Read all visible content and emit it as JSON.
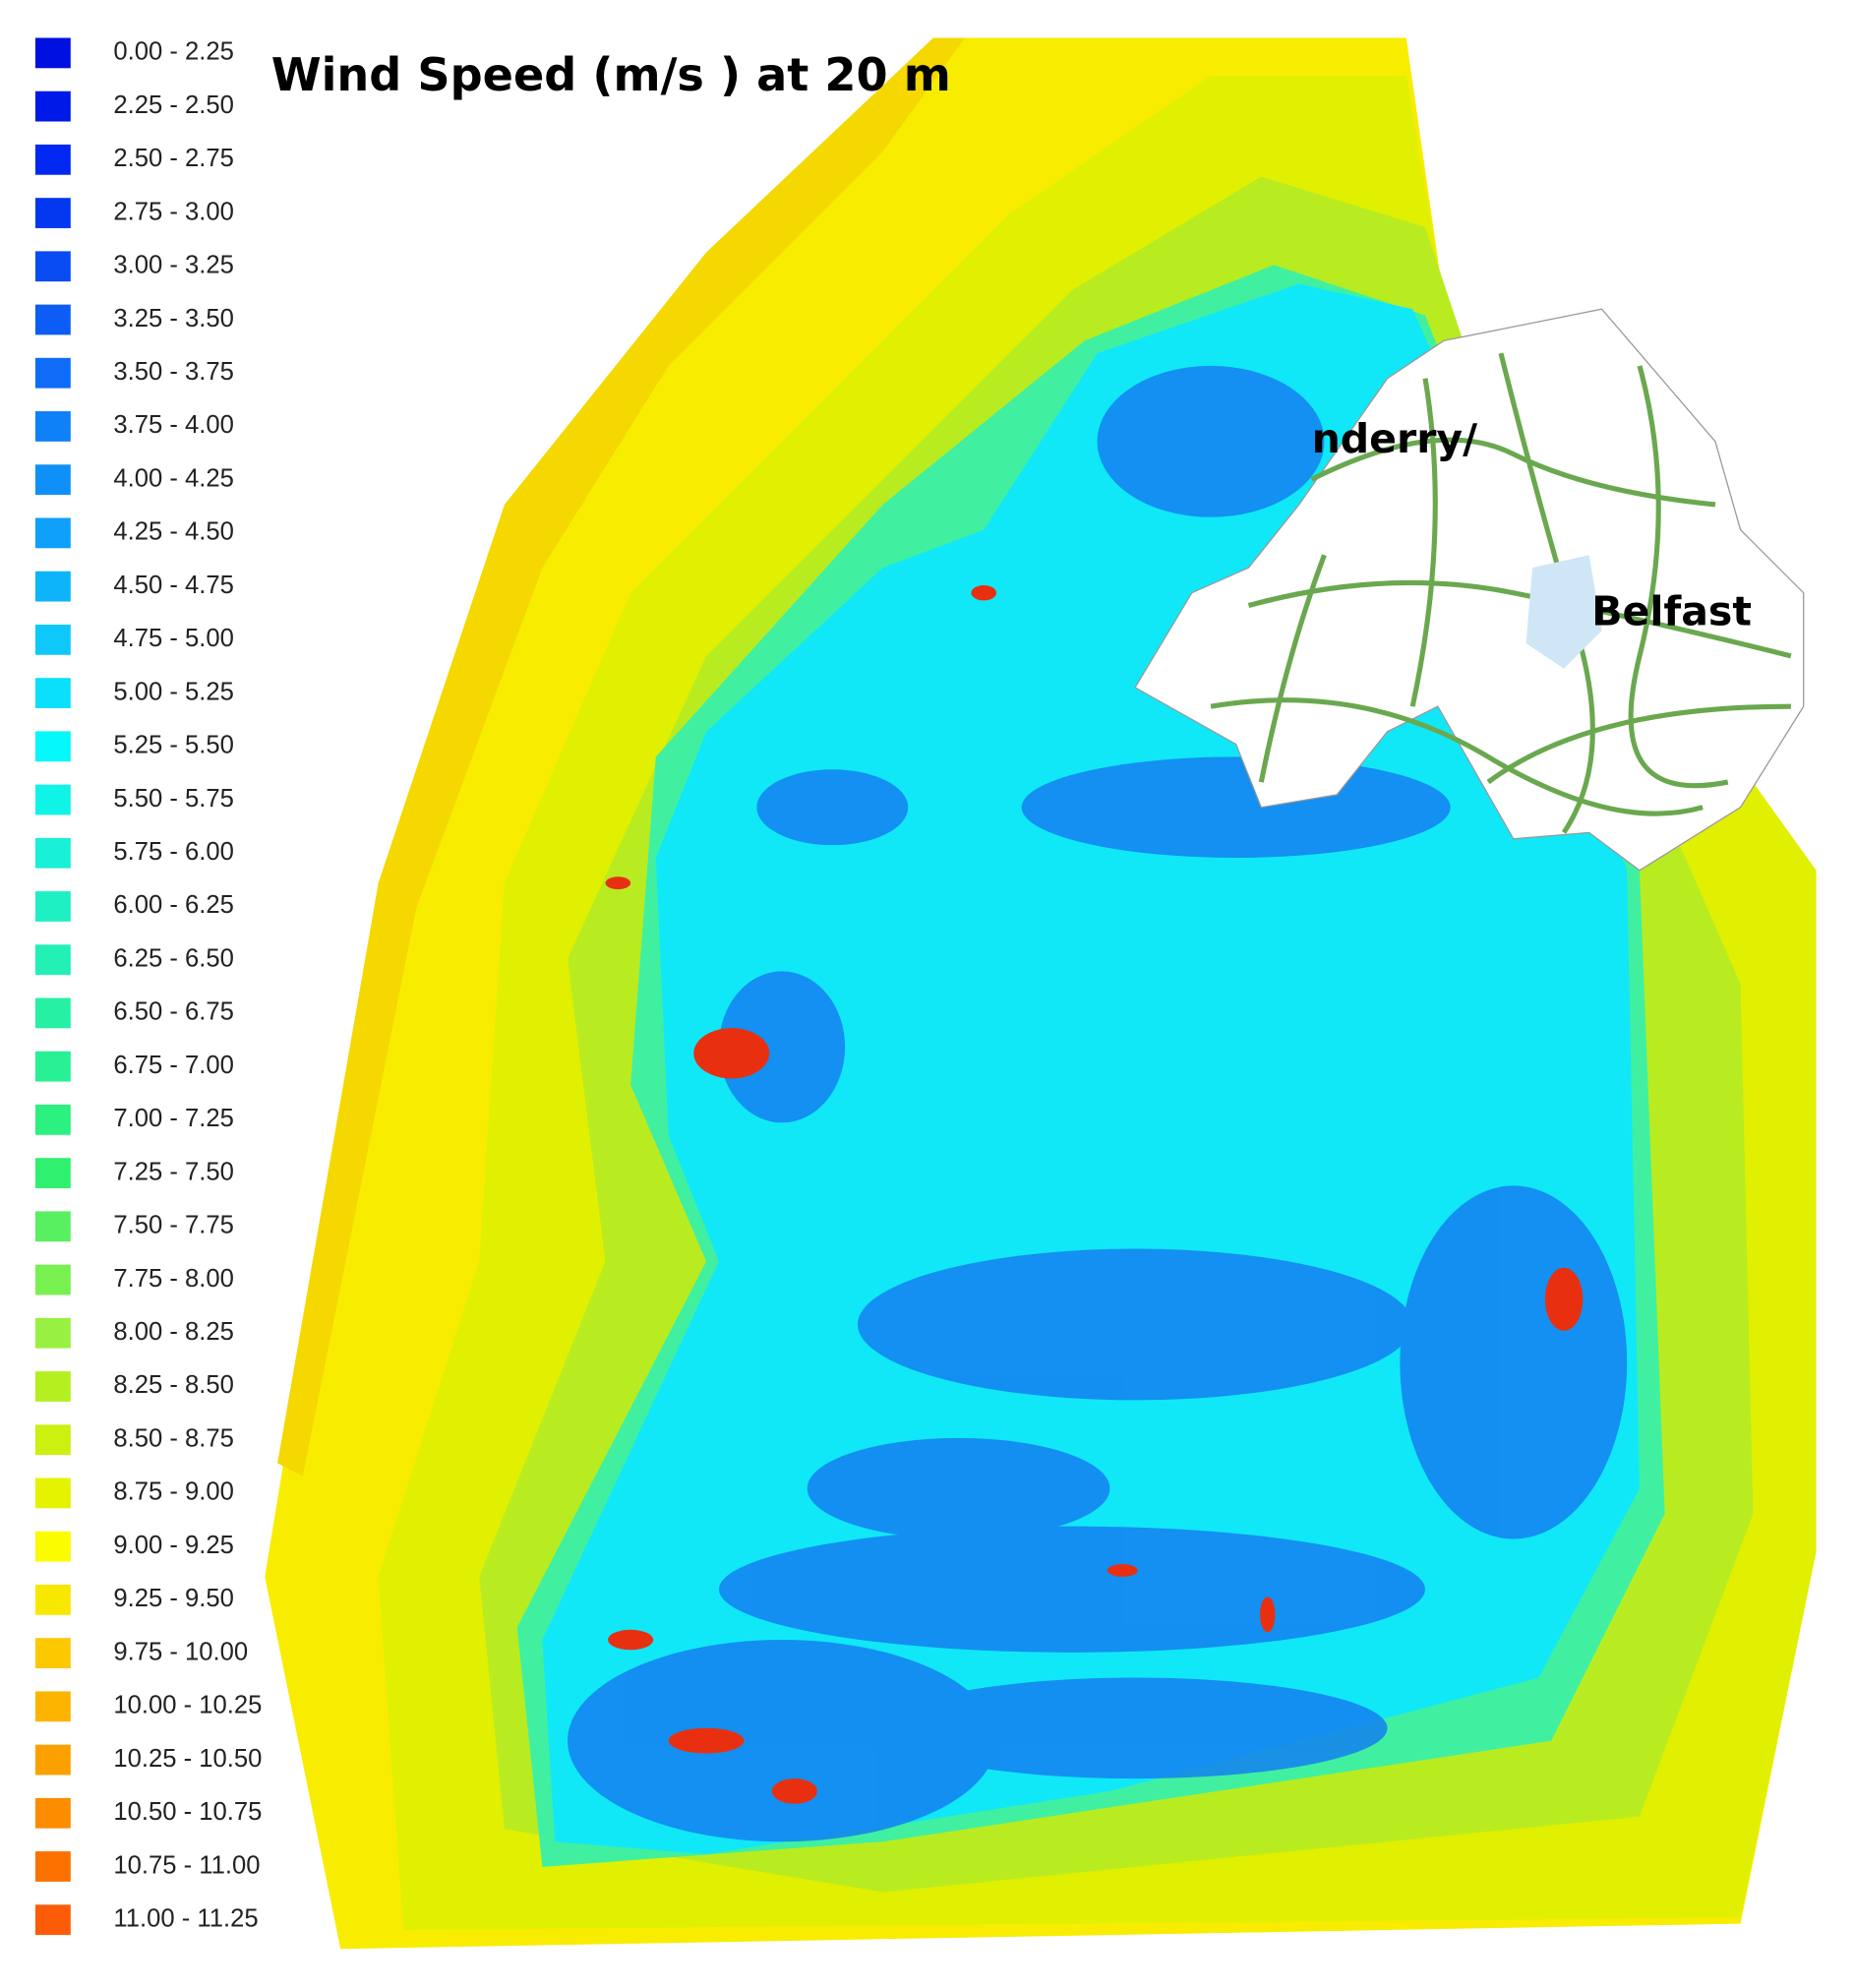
{
  "title": "Wind Speed (m/s ) at 20 m",
  "legend": {
    "items": [
      {
        "label": "0.00 - 2.25",
        "color": "#0010e0"
      },
      {
        "label": "2.25 - 2.50",
        "color": "#0018e8"
      },
      {
        "label": "2.50 - 2.75",
        "color": "#0028f0"
      },
      {
        "label": "2.75 - 3.00",
        "color": "#0438f0"
      },
      {
        "label": "3.00 - 3.25",
        "color": "#0a4cf4"
      },
      {
        "label": "3.25 - 3.50",
        "color": "#0e5cf6"
      },
      {
        "label": "3.50 - 3.75",
        "color": "#0e6cf8"
      },
      {
        "label": "3.75 - 4.00",
        "color": "#0e80f8"
      },
      {
        "label": "4.00 - 4.25",
        "color": "#0e90f8"
      },
      {
        "label": "4.25 - 4.50",
        "color": "#0ea0fa"
      },
      {
        "label": "4.50 - 4.75",
        "color": "#0eb4fa"
      },
      {
        "label": "4.75 - 5.00",
        "color": "#0ec8fc"
      },
      {
        "label": "5.00 - 5.25",
        "color": "#0ae0fc"
      },
      {
        "label": "5.25 - 5.50",
        "color": "#04f8fc"
      },
      {
        "label": "5.50 - 5.75",
        "color": "#10f4e8"
      },
      {
        "label": "5.75 - 6.00",
        "color": "#18f0d8"
      },
      {
        "label": "6.00 - 6.25",
        "color": "#1ef0c4"
      },
      {
        "label": "6.25 - 6.50",
        "color": "#22f0b4"
      },
      {
        "label": "6.50 - 6.75",
        "color": "#26f0a4"
      },
      {
        "label": "6.75 - 7.00",
        "color": "#28f094"
      },
      {
        "label": "7.00 - 7.25",
        "color": "#2cf080"
      },
      {
        "label": "7.25 - 7.50",
        "color": "#30f070"
      },
      {
        "label": "7.50 - 7.75",
        "color": "#58f060"
      },
      {
        "label": "7.75 - 8.00",
        "color": "#78f050"
      },
      {
        "label": "8.00 - 8.25",
        "color": "#98f040"
      },
      {
        "label": "8.25 - 8.50",
        "color": "#b4f020"
      },
      {
        "label": "8.50 - 8.75",
        "color": "#ccf010"
      },
      {
        "label": "8.75 - 9.00",
        "color": "#e4f400"
      },
      {
        "label": "9.00 - 9.25",
        "color": "#fcfc00"
      },
      {
        "label": "9.25 - 9.50",
        "color": "#f8e800"
      },
      {
        "label": "9.75 - 10.00",
        "color": "#fcc800"
      },
      {
        "label": "10.00 - 10.25",
        "color": "#fcb400"
      },
      {
        "label": "10.25 - 10.50",
        "color": "#fca000"
      },
      {
        "label": "10.50 - 10.75",
        "color": "#fc8c00"
      },
      {
        "label": "10.75 - 11.00",
        "color": "#fc7000"
      },
      {
        "label": "11.00 - 11.25",
        "color": "#fc5c08"
      }
    ]
  },
  "map": {
    "labels": [
      "nderry/",
      "Belfast"
    ]
  }
}
